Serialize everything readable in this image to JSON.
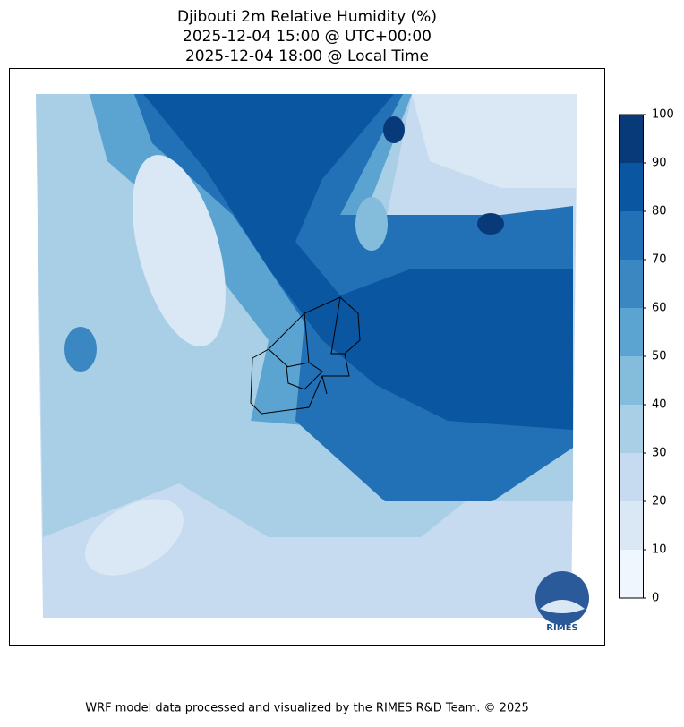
{
  "title": [
    "Djibouti 2m Relative Humidity (%)",
    "2025-12-04 15:00 @ UTC+00:00",
    "2025-12-04 18:00 @ Local Time"
  ],
  "colorbar": {
    "lim": [
      0,
      100
    ],
    "ticks": [
      0,
      10,
      20,
      30,
      40,
      50,
      60,
      70,
      80,
      90,
      100
    ],
    "colors": [
      "#f0f6fd",
      "#dae8f6",
      "#c6dbef",
      "#a8cfe5",
      "#84bcdb",
      "#5ba3d0",
      "#3b87c1",
      "#2270b5",
      "#0b56a0",
      "#083a7a"
    ]
  },
  "logo": "RIMES",
  "footer": "WRF model data processed and visualized by the RIMES R&D Team. © 2025"
}
